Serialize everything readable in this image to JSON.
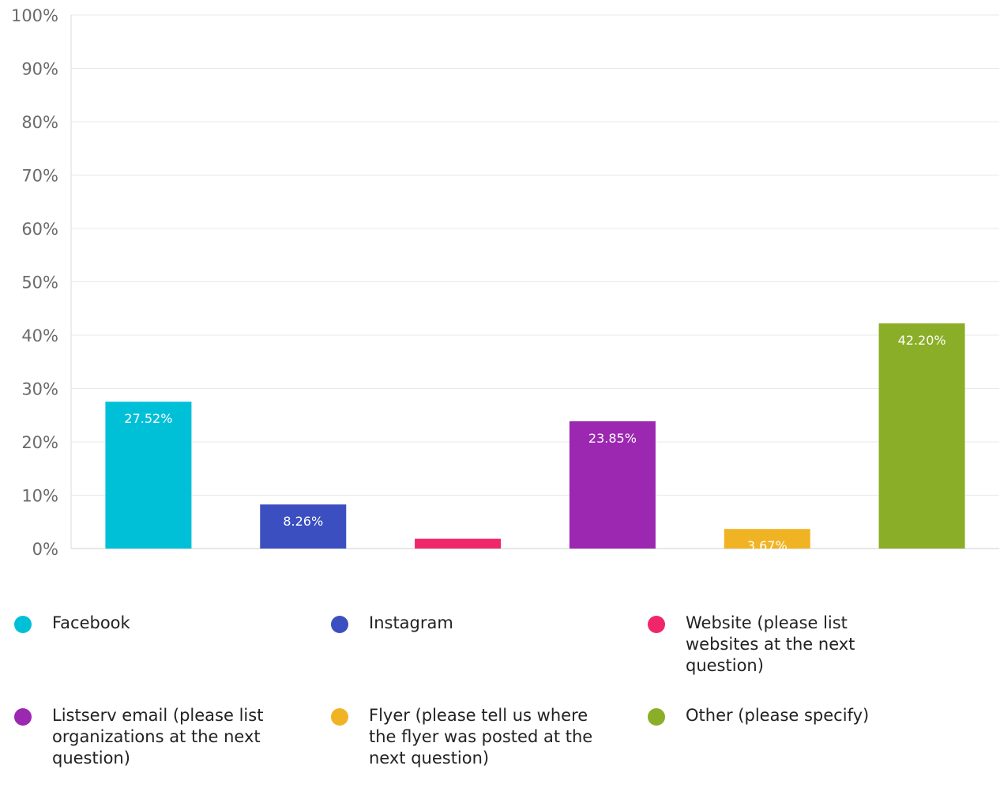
{
  "chart_data": {
    "type": "bar",
    "categories": [
      "Facebook",
      "Instagram",
      "Website (please list websites at the next question)",
      "Listserv email (please list organizations at the next question)",
      "Flyer (please tell us where the flyer was posted at the next question)",
      "Other (please specify)"
    ],
    "values": [
      27.52,
      8.26,
      1.83,
      23.85,
      3.67,
      42.2
    ],
    "data_labels": [
      "27.52%",
      "8.26%",
      "",
      "23.85%",
      "3.67%",
      "42.20%"
    ],
    "colors": [
      "#00c0d8",
      "#3b4fc0",
      "#f0266a",
      "#9c27b0",
      "#f0b323",
      "#8aae27"
    ],
    "ylim": [
      0,
      100
    ],
    "yticks": [
      0,
      10,
      20,
      30,
      40,
      50,
      60,
      70,
      80,
      90,
      100
    ],
    "ytick_labels": [
      "0%",
      "10%",
      "20%",
      "30%",
      "40%",
      "50%",
      "60%",
      "70%",
      "80%",
      "90%",
      "100%"
    ],
    "grid": true,
    "legend_position": "bottom",
    "legend": [
      {
        "label": "Facebook",
        "color": "#00c0d8"
      },
      {
        "label": "Instagram",
        "color": "#3b4fc0"
      },
      {
        "label": "Website (please list websites at the next question)",
        "color": "#f0266a"
      },
      {
        "label": "Listserv email (please list organizations at the next question)",
        "color": "#9c27b0"
      },
      {
        "label": "Flyer (please tell us where the flyer was posted at the next question)",
        "color": "#f0b323"
      },
      {
        "label": "Other (please specify)",
        "color": "#8aae27"
      }
    ]
  }
}
